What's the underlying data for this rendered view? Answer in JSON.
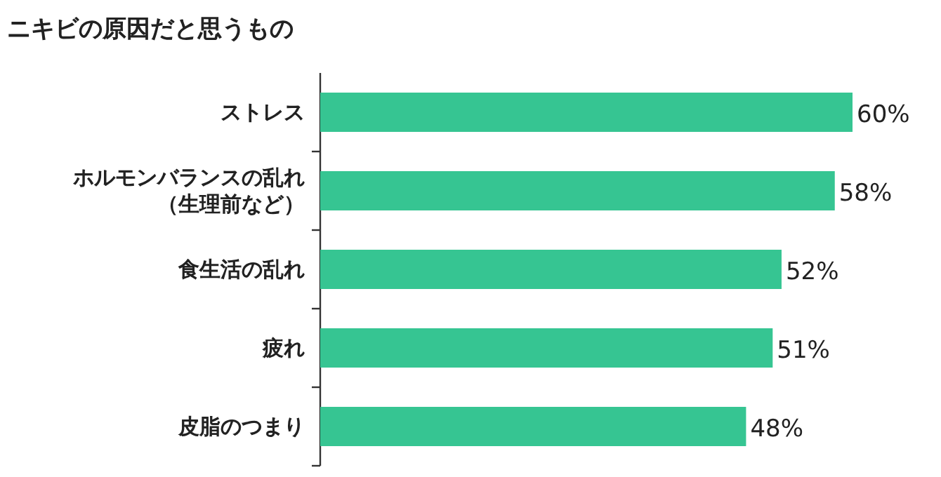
{
  "chart_data": {
    "type": "bar",
    "orientation": "horizontal",
    "title": "ニキビの原因だと思うもの",
    "categories": [
      "ストレス",
      "ホルモンバランスの乱れ（生理前など）",
      "食生活の乱れ",
      "疲れ",
      "皮脂のつまり"
    ],
    "values": [
      60,
      58,
      52,
      51,
      48
    ],
    "value_labels": [
      "60%",
      "58%",
      "52%",
      "51%",
      "48%"
    ],
    "color": "#36c592"
  }
}
